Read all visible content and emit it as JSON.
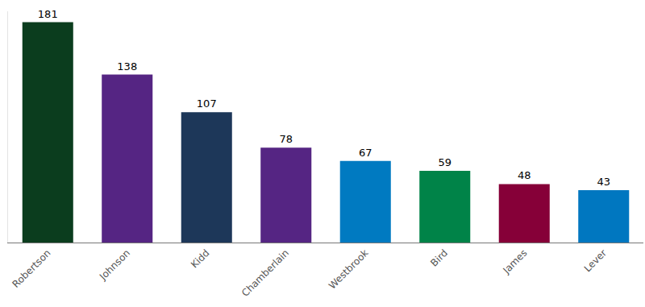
{
  "chart_data": {
    "type": "bar",
    "categories": [
      "Robertson",
      "Johnson",
      "Kidd",
      "Chamberlain",
      "Westbrook",
      "Bird",
      "James",
      "Lever"
    ],
    "values": [
      181,
      138,
      107,
      78,
      67,
      59,
      48,
      43
    ],
    "colors": [
      "#0b3d1e",
      "#552583",
      "#1d3759",
      "#552583",
      "#007ac1",
      "#008348",
      "#860038",
      "#0077c0"
    ],
    "ylim": [
      0,
      190
    ],
    "yticks": [],
    "grid": false,
    "data_labels": true,
    "tick_labels": "x"
  }
}
